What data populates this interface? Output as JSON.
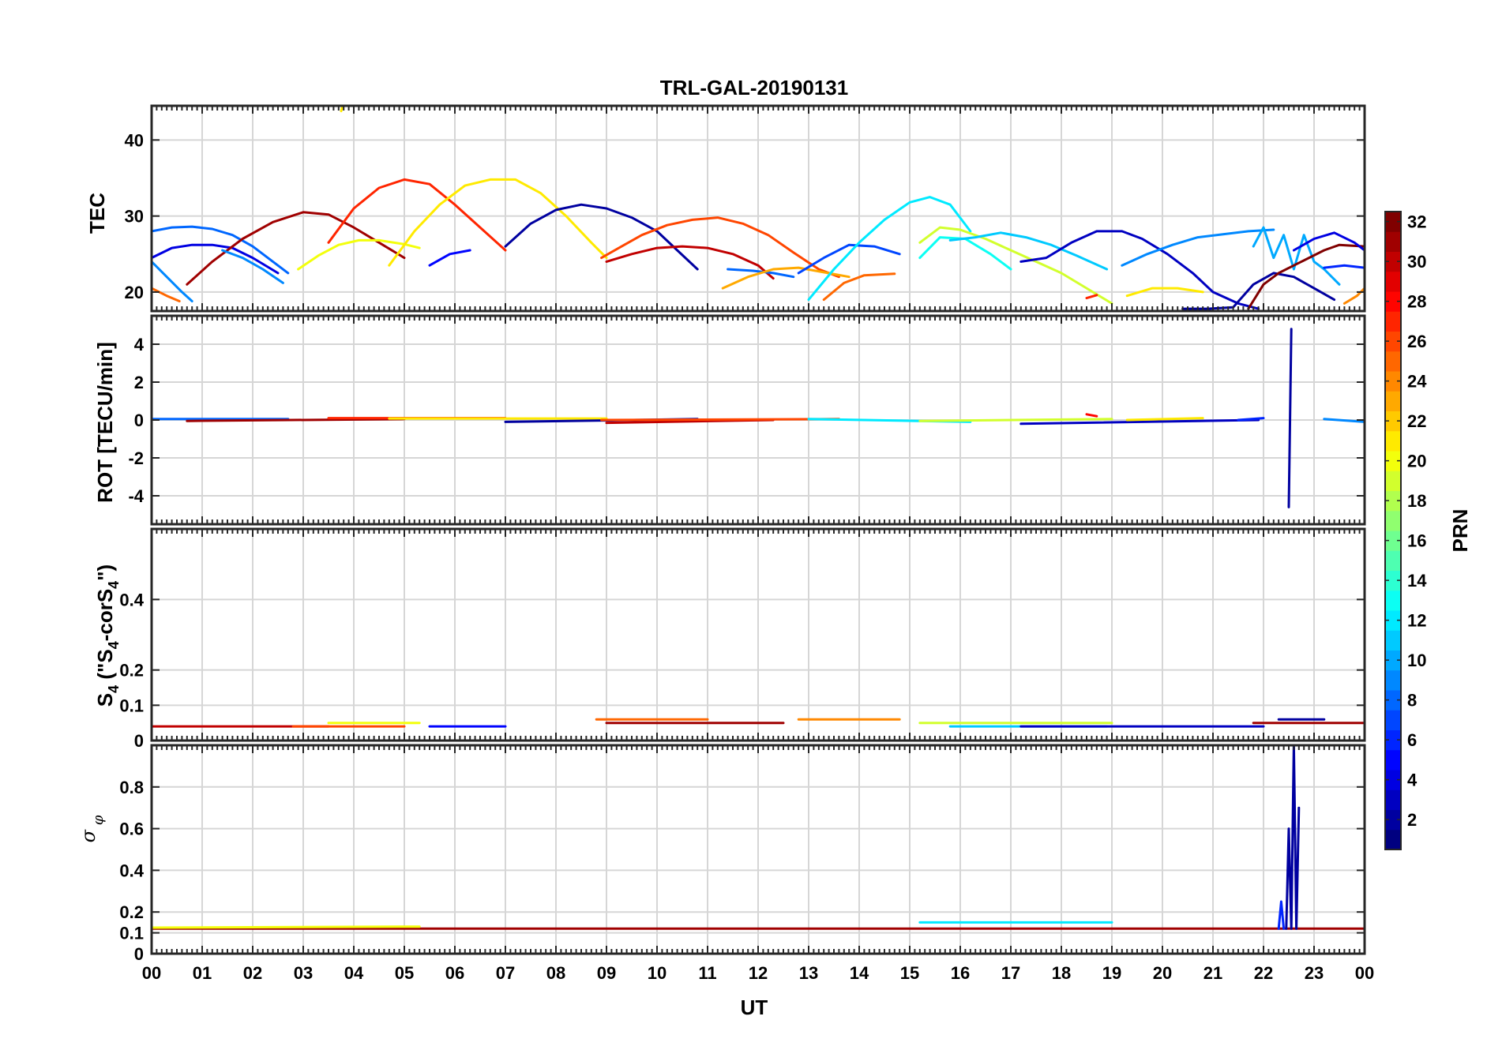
{
  "title": "TRL-GAL-20190131",
  "xlabel": "UT",
  "x_ticks": [
    "00",
    "01",
    "02",
    "03",
    "04",
    "05",
    "06",
    "07",
    "08",
    "09",
    "10",
    "11",
    "12",
    "13",
    "14",
    "15",
    "16",
    "17",
    "18",
    "19",
    "20",
    "21",
    "22",
    "23",
    "00"
  ],
  "colorbar": {
    "label": "PRN",
    "range": [
      1,
      32
    ],
    "ticks": [
      "2",
      "4",
      "6",
      "8",
      "10",
      "12",
      "14",
      "16",
      "18",
      "20",
      "22",
      "24",
      "26",
      "28",
      "30",
      "32"
    ],
    "colormap": "jet"
  },
  "chart_data": [
    {
      "type": "line",
      "name": "tec",
      "ylabel": "TEC",
      "xlim": [
        0,
        24
      ],
      "ylim": [
        17.5,
        44.5
      ],
      "y_ticks": [
        "20",
        "30",
        "40"
      ],
      "grid": true,
      "series": [
        {
          "prn": 8,
          "x": [
            0.0,
            0.4,
            0.8,
            1.2,
            1.6,
            2.0,
            2.4,
            2.7
          ],
          "y": [
            28.0,
            28.5,
            28.6,
            28.3,
            27.5,
            26.0,
            24.0,
            22.5
          ]
        },
        {
          "prn": 4,
          "x": [
            0.0,
            0.4,
            0.8,
            1.2,
            1.6,
            2.0,
            2.5
          ],
          "y": [
            24.5,
            25.8,
            26.2,
            26.2,
            25.8,
            24.5,
            22.5
          ]
        },
        {
          "prn": 9,
          "x": [
            0.0,
            0.3,
            0.6,
            0.8
          ],
          "y": [
            24.0,
            22.0,
            20.0,
            18.8
          ]
        },
        {
          "prn": 25,
          "x": [
            0.0,
            0.3,
            0.55
          ],
          "y": [
            20.5,
            19.5,
            18.8
          ]
        },
        {
          "prn": 31,
          "x": [
            0.7,
            1.2,
            1.8,
            2.4,
            3.0,
            3.5,
            4.0,
            4.5,
            5.0
          ],
          "y": [
            21.0,
            24.0,
            27.0,
            29.2,
            30.5,
            30.2,
            28.5,
            26.5,
            24.5
          ]
        },
        {
          "prn": 9,
          "x": [
            1.4,
            1.8,
            2.2,
            2.6
          ],
          "y": [
            25.5,
            24.5,
            23.0,
            21.2
          ]
        },
        {
          "prn": 20,
          "x": [
            2.9,
            3.3,
            3.7,
            4.1,
            4.5,
            5.0,
            5.3
          ],
          "y": [
            23.0,
            24.8,
            26.2,
            26.8,
            26.8,
            26.3,
            25.8
          ]
        },
        {
          "prn": 27,
          "x": [
            3.5,
            4.0,
            4.5,
            5.0,
            5.5,
            6.0,
            6.5,
            7.0
          ],
          "y": [
            26.5,
            31.0,
            33.7,
            34.8,
            34.2,
            31.5,
            28.5,
            25.5
          ]
        },
        {
          "prn": 21,
          "x": [
            4.7,
            5.2,
            5.7,
            6.2,
            6.7,
            7.2,
            7.7,
            8.2,
            8.7,
            9.0
          ],
          "y": [
            23.5,
            28.0,
            31.5,
            34.0,
            34.8,
            34.8,
            33.0,
            30.0,
            26.5,
            24.5
          ]
        },
        {
          "prn": 5,
          "x": [
            5.5,
            5.9,
            6.3
          ],
          "y": [
            23.5,
            25.0,
            25.5
          ]
        },
        {
          "prn": 2,
          "x": [
            7.0,
            7.5,
            8.0,
            8.5,
            9.0,
            9.5,
            10.0,
            10.4,
            10.8
          ],
          "y": [
            26.0,
            29.0,
            30.8,
            31.5,
            31.0,
            29.8,
            28.0,
            25.5,
            23.0
          ]
        },
        {
          "prn": 26,
          "x": [
            8.9,
            9.3,
            9.7,
            10.2,
            10.7,
            11.2,
            11.7,
            12.2,
            12.7,
            13.2,
            13.6
          ],
          "y": [
            24.5,
            26.0,
            27.5,
            28.8,
            29.5,
            29.8,
            29.0,
            27.5,
            25.2,
            23.0,
            22.0
          ]
        },
        {
          "prn": 30,
          "x": [
            9.0,
            9.5,
            10.0,
            10.5,
            11.0,
            11.5,
            12.0,
            12.3
          ],
          "y": [
            24.0,
            25.0,
            25.8,
            26.0,
            25.8,
            25.0,
            23.5,
            21.8
          ]
        },
        {
          "prn": 8,
          "x": [
            11.4,
            11.9,
            12.3,
            12.7
          ],
          "y": [
            23.0,
            22.8,
            22.5,
            22.0
          ]
        },
        {
          "prn": 23,
          "x": [
            11.3,
            11.8,
            12.3,
            12.8,
            13.3,
            13.8
          ],
          "y": [
            20.5,
            22.0,
            23.0,
            23.2,
            22.6,
            22.0
          ]
        },
        {
          "prn": 25,
          "x": [
            13.3,
            13.7,
            14.1,
            14.7
          ],
          "y": [
            19.0,
            21.2,
            22.2,
            22.4
          ]
        },
        {
          "prn": 7,
          "x": [
            12.8,
            13.3,
            13.8,
            14.3,
            14.8
          ],
          "y": [
            22.5,
            24.5,
            26.2,
            26.0,
            25.0
          ]
        },
        {
          "prn": 12,
          "x": [
            13.0,
            13.5,
            14.0,
            14.5,
            15.0,
            15.4,
            15.8,
            16.2
          ],
          "y": [
            19.0,
            23.0,
            26.5,
            29.5,
            31.8,
            32.5,
            31.5,
            28.0
          ]
        },
        {
          "prn": 19,
          "x": [
            15.2,
            15.6,
            16.0,
            16.5,
            17.0,
            17.5,
            18.0,
            18.5,
            19.0
          ],
          "y": [
            26.5,
            28.5,
            28.2,
            27.0,
            25.5,
            24.0,
            22.5,
            20.5,
            18.5
          ]
        },
        {
          "prn": 13,
          "x": [
            15.2,
            15.6,
            16.1,
            16.6,
            17.0
          ],
          "y": [
            24.5,
            27.2,
            27.0,
            25.0,
            23.0
          ]
        },
        {
          "prn": 11,
          "x": [
            15.8,
            16.3,
            16.8,
            17.3,
            17.8,
            18.3,
            18.9
          ],
          "y": [
            26.8,
            27.2,
            27.8,
            27.2,
            26.2,
            24.8,
            23.0
          ]
        },
        {
          "prn": 3,
          "x": [
            17.2,
            17.7,
            18.2,
            18.7,
            19.2,
            19.6,
            20.1,
            20.6,
            21.0,
            21.5,
            21.9
          ],
          "y": [
            24.0,
            24.5,
            26.5,
            28.0,
            28.0,
            27.0,
            25.0,
            22.5,
            20.0,
            18.5,
            17.8
          ]
        },
        {
          "prn": 27,
          "x": [
            18.5,
            18.7
          ],
          "y": [
            19.2,
            19.6
          ]
        },
        {
          "prn": 21,
          "x": [
            19.3,
            19.8,
            20.3,
            20.8
          ],
          "y": [
            19.5,
            20.5,
            20.5,
            20.0
          ]
        },
        {
          "prn": 9,
          "x": [
            19.2,
            19.7,
            20.2,
            20.7,
            21.2,
            21.7,
            22.2
          ],
          "y": [
            23.5,
            25.0,
            26.2,
            27.2,
            27.6,
            28.0,
            28.2
          ]
        },
        {
          "prn": 10,
          "x": [
            21.8,
            22.0,
            22.2,
            22.4,
            22.6,
            22.8,
            23.0,
            23.2,
            23.5
          ],
          "y": [
            26.0,
            28.5,
            24.5,
            27.5,
            23.0,
            27.5,
            24.0,
            23.0,
            21.0
          ]
        },
        {
          "prn": 2,
          "x": [
            20.4,
            20.9,
            21.4,
            21.8,
            22.2,
            22.6,
            23.0,
            23.4
          ],
          "y": [
            17.8,
            17.8,
            18.0,
            21.0,
            22.5,
            22.0,
            20.5,
            19.0
          ]
        },
        {
          "prn": 32,
          "x": [
            21.7,
            22.0,
            22.3,
            22.6,
            22.9,
            23.2,
            23.5,
            24.0
          ],
          "y": [
            17.8,
            21.0,
            22.5,
            23.5,
            24.5,
            25.5,
            26.2,
            26.0
          ]
        },
        {
          "prn": 4,
          "x": [
            22.6,
            23.0,
            23.4,
            23.8,
            24.0
          ],
          "y": [
            25.5,
            27.0,
            27.8,
            26.5,
            25.5
          ]
        },
        {
          "prn": 6,
          "x": [
            23.2,
            23.6,
            24.0
          ],
          "y": [
            23.2,
            23.5,
            23.2
          ]
        },
        {
          "prn": 24,
          "x": [
            23.6,
            23.85,
            24.0
          ],
          "y": [
            18.5,
            19.5,
            20.5
          ]
        },
        {
          "prn": 21,
          "x": [
            3.75,
            3.78
          ],
          "y": [
            43.8,
            44.5
          ]
        }
      ]
    },
    {
      "type": "line",
      "name": "rot",
      "ylabel": "ROT [TECU/min]",
      "xlim": [
        0,
        24
      ],
      "ylim": [
        -5.5,
        5.5
      ],
      "y_ticks": [
        "-4",
        "-2",
        "0",
        "2",
        "4"
      ],
      "grid": true,
      "series": [
        {
          "prn": 8,
          "x": [
            0.0,
            2.7
          ],
          "y": [
            0.05,
            0.05
          ]
        },
        {
          "prn": 31,
          "x": [
            0.7,
            5.0
          ],
          "y": [
            -0.05,
            0.05
          ]
        },
        {
          "prn": 27,
          "x": [
            3.5,
            7.0
          ],
          "y": [
            0.1,
            0.1
          ]
        },
        {
          "prn": 21,
          "x": [
            4.7,
            9.0
          ],
          "y": [
            0.08,
            0.08
          ]
        },
        {
          "prn": 2,
          "x": [
            7.0,
            10.8
          ],
          "y": [
            -0.1,
            0.05
          ]
        },
        {
          "prn": 30,
          "x": [
            9.0,
            12.3
          ],
          "y": [
            -0.15,
            0.0
          ]
        },
        {
          "prn": 26,
          "x": [
            8.9,
            13.6
          ],
          "y": [
            0.0,
            0.05
          ]
        },
        {
          "prn": 12,
          "x": [
            13.0,
            16.2
          ],
          "y": [
            0.05,
            -0.1
          ]
        },
        {
          "prn": 19,
          "x": [
            15.2,
            19.0
          ],
          "y": [
            -0.05,
            0.05
          ]
        },
        {
          "prn": 3,
          "x": [
            17.2,
            21.9
          ],
          "y": [
            -0.2,
            0.0
          ]
        },
        {
          "prn": 28,
          "x": [
            18.5,
            18.7
          ],
          "y": [
            0.3,
            0.2
          ]
        },
        {
          "prn": 21,
          "x": [
            19.3,
            20.8
          ],
          "y": [
            0.0,
            0.1
          ]
        },
        {
          "prn": 6,
          "x": [
            21.5,
            22.0
          ],
          "y": [
            0.0,
            0.1
          ]
        },
        {
          "prn": 2,
          "x": [
            22.5,
            22.55
          ],
          "y": [
            -4.6,
            4.8
          ]
        },
        {
          "prn": 9,
          "x": [
            23.2,
            24.0
          ],
          "y": [
            0.05,
            -0.1
          ]
        }
      ]
    },
    {
      "type": "line",
      "name": "s4",
      "ylabel": "S4 (\"S4-corS4\")",
      "xlim": [
        0,
        24
      ],
      "ylim": [
        0,
        0.6
      ],
      "y_ticks": [
        "0",
        "0.1",
        "0.2",
        "0.4"
      ],
      "grid": true,
      "series": [
        {
          "prn": 30,
          "x": [
            0.0,
            3.5
          ],
          "y": [
            0.04,
            0.04
          ]
        },
        {
          "prn": 26,
          "x": [
            2.8,
            5.0
          ],
          "y": [
            0.04,
            0.04
          ]
        },
        {
          "prn": 20,
          "x": [
            3.5,
            5.3
          ],
          "y": [
            0.05,
            0.05
          ]
        },
        {
          "prn": 5,
          "x": [
            5.5,
            7.0
          ],
          "y": [
            0.04,
            0.04
          ]
        },
        {
          "prn": 25,
          "x": [
            8.8,
            11.0
          ],
          "y": [
            0.06,
            0.06
          ]
        },
        {
          "prn": 31,
          "x": [
            9.0,
            12.5
          ],
          "y": [
            0.05,
            0.05
          ]
        },
        {
          "prn": 24,
          "x": [
            12.8,
            14.8
          ],
          "y": [
            0.06,
            0.06
          ]
        },
        {
          "prn": 19,
          "x": [
            15.2,
            19.0
          ],
          "y": [
            0.05,
            0.05
          ]
        },
        {
          "prn": 11,
          "x": [
            15.8,
            18.9
          ],
          "y": [
            0.04,
            0.04
          ]
        },
        {
          "prn": 3,
          "x": [
            17.2,
            22.0
          ],
          "y": [
            0.04,
            0.04
          ]
        },
        {
          "prn": 31,
          "x": [
            21.8,
            24.0
          ],
          "y": [
            0.05,
            0.05
          ]
        },
        {
          "prn": 2,
          "x": [
            22.3,
            23.2
          ],
          "y": [
            0.06,
            0.06
          ]
        }
      ]
    },
    {
      "type": "line",
      "name": "sigma_phi",
      "ylabel": "σφ",
      "xlim": [
        0,
        24
      ],
      "ylim": [
        0,
        1.0
      ],
      "y_ticks": [
        "0",
        "0.1",
        "0.2",
        "0.4",
        "0.6",
        "0.8"
      ],
      "grid": true,
      "series": [
        {
          "prn": 31,
          "x": [
            0.0,
            24.0
          ],
          "y": [
            0.12,
            0.12
          ]
        },
        {
          "prn": 20,
          "x": [
            0.0,
            5.3
          ],
          "y": [
            0.125,
            0.13
          ]
        },
        {
          "prn": 12,
          "x": [
            15.2,
            19.0
          ],
          "y": [
            0.15,
            0.15
          ]
        },
        {
          "prn": 2,
          "x": [
            22.45,
            22.5,
            22.55,
            22.6,
            22.65,
            22.7
          ],
          "y": [
            0.12,
            0.6,
            0.12,
            1.0,
            0.12,
            0.7
          ]
        },
        {
          "prn": 6,
          "x": [
            22.3,
            22.35,
            22.4
          ],
          "y": [
            0.12,
            0.25,
            0.12
          ]
        }
      ]
    }
  ]
}
